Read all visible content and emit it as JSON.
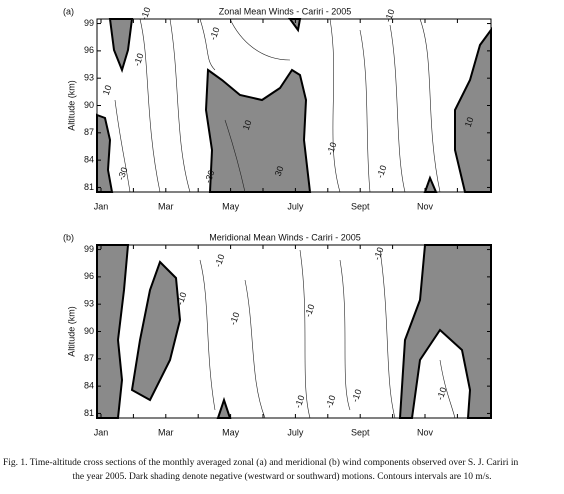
{
  "chart_data": [
    {
      "type": "contour",
      "panel": "(a)",
      "title": "Zonal Mean Winds - Cariri - 2005",
      "ylabel": "Altitude (km)",
      "categories": [
        "Jan",
        null,
        "Mar",
        null,
        "May",
        null,
        "July",
        null,
        "Sept",
        null,
        "Nov",
        null
      ],
      "ylim": [
        80.5,
        99.5
      ],
      "yticks": [
        81,
        84,
        87,
        90,
        93,
        96,
        99
      ],
      "contour_labels": [
        -10,
        -10,
        -10,
        10,
        10,
        -30,
        -30,
        30,
        -10,
        -10,
        10,
        -10
      ]
    },
    {
      "type": "contour",
      "panel": "(b)",
      "title": "Meridional Mean Winds - Cariri - 2005",
      "ylabel": "Altitude (km)",
      "categories": [
        "Jan",
        null,
        "Mar",
        null,
        "May",
        null,
        "July",
        null,
        "Sept",
        null,
        "Nov",
        null
      ],
      "ylim": [
        80.5,
        99.5
      ],
      "yticks": [
        81,
        84,
        87,
        90,
        93,
        96,
        99
      ],
      "contour_labels": [
        -10,
        -10,
        -10,
        -10,
        -10,
        -10,
        -10,
        -10,
        -10
      ]
    }
  ],
  "caption": [
    "Fig. 1. Time-altitude cross sections of the monthly averaged zonal (a) and meridional (b) wind components observed over S. J. Cariri in",
    "the year 2005. Dark shading denote negative (westward or southward) motions. Contours intervals are 10 m/s."
  ]
}
